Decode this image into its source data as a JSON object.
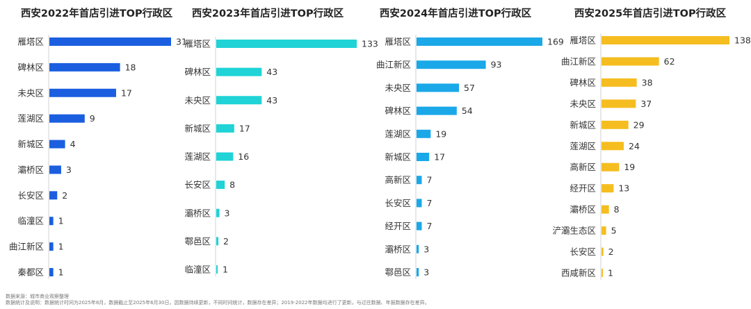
{
  "chart_data": [
    {
      "type": "bar",
      "orientation": "horizontal",
      "title": "西安2022年首店引进TOP行政区",
      "categories": [
        "雁塔区",
        "碑林区",
        "未央区",
        "莲湖区",
        "新城区",
        "灞桥区",
        "长安区",
        "临潼区",
        "曲江新区",
        "秦都区"
      ],
      "values": [
        31,
        18,
        17,
        9,
        4,
        3,
        2,
        1,
        1,
        1
      ],
      "color": "#1b5fe0",
      "xlim": [
        0,
        31
      ]
    },
    {
      "type": "bar",
      "orientation": "horizontal",
      "title": "西安2023年首店引进TOP行政区",
      "categories": [
        "雁塔区",
        "碑林区",
        "未央区",
        "新城区",
        "莲湖区",
        "长安区",
        "灞桥区",
        "鄠邑区",
        "临潼区"
      ],
      "values": [
        133,
        43,
        43,
        17,
        16,
        8,
        3,
        2,
        1
      ],
      "color": "#1fd3d6",
      "xlim": [
        0,
        133
      ]
    },
    {
      "type": "bar",
      "orientation": "horizontal",
      "title": "西安2024年首店引进TOP行政区",
      "categories": [
        "雁塔区",
        "曲江新区",
        "未央区",
        "碑林区",
        "莲湖区",
        "新城区",
        "高新区",
        "长安区",
        "经开区",
        "灞桥区",
        "鄠邑区"
      ],
      "values": [
        169,
        93,
        57,
        54,
        19,
        17,
        7,
        7,
        7,
        3,
        3
      ],
      "color": "#1aa8e8",
      "xlim": [
        0,
        169
      ]
    },
    {
      "type": "bar",
      "orientation": "horizontal",
      "title": "西安2025年首店引进TOP行政区",
      "categories": [
        "雁塔区",
        "曲江新区",
        "碑林区",
        "未央区",
        "新城区",
        "莲湖区",
        "高新区",
        "经开区",
        "灞桥区",
        "浐灞生态区",
        "长安区",
        "西咸新区"
      ],
      "values": [
        138,
        62,
        38,
        37,
        29,
        24,
        19,
        13,
        8,
        5,
        2,
        1
      ],
      "color": "#f5bd1f",
      "xlim": [
        0,
        138
      ]
    }
  ],
  "footnotes": {
    "source": "数据来源：城市商业观察整理",
    "note": "数据统计及说明：数据统计时间为2025年8月，数据截止至2025年6月30日，因数据持续更新，不同时间统计，数据存在差异；2019-2022年数据均进行了更新，与过往数据、年报数据存在差异。"
  }
}
